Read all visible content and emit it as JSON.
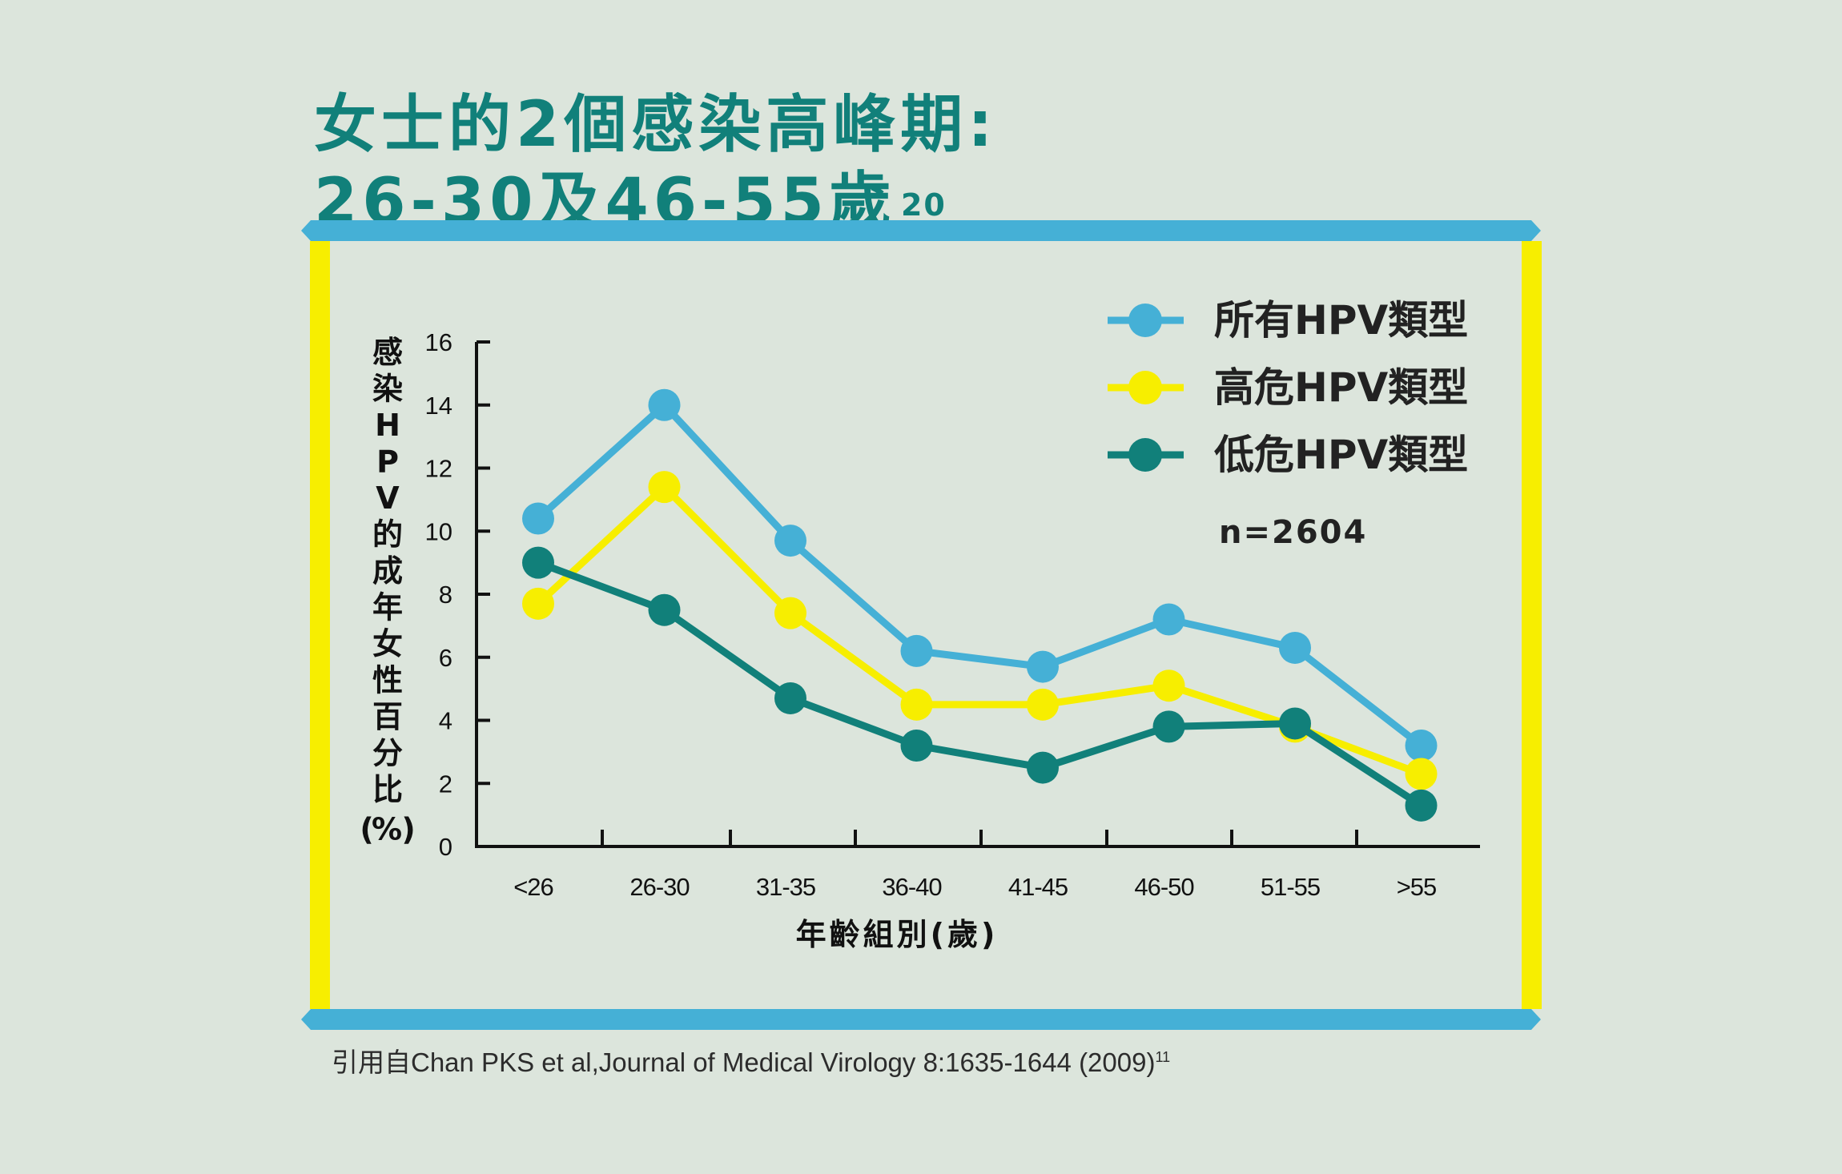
{
  "title": {
    "line1": "女士的2個感染高峰期:",
    "line2": "26-30及46-55歲",
    "superscript": "20"
  },
  "citation": {
    "text": "引用自Chan PKS et al,Journal of Medical Virology 8:1635-1644 (2009)",
    "superscript": "11"
  },
  "colors": {
    "frame_blue": "#45b0d6",
    "frame_yellow": "#f7ee00",
    "title_teal": "#11807a"
  },
  "chart_data": {
    "type": "line",
    "ylabel": "感染HPV的成年女性百分比(%)",
    "xlabel": "年齡組別(歲)",
    "categories": [
      "<26",
      "26-30",
      "31-35",
      "36-40",
      "41-45",
      "46-50",
      "51-55",
      ">55"
    ],
    "ylim": [
      0,
      16
    ],
    "yticks": [
      "0",
      "2",
      "4",
      "6",
      "8",
      "10",
      "12",
      "14",
      "16"
    ],
    "annotation": "n=2604",
    "legend_position": "top-right",
    "grid": false,
    "series": [
      {
        "name": "所有HPV類型",
        "color": "#45b0d6",
        "values": [
          10.4,
          14.0,
          9.7,
          6.2,
          5.7,
          7.2,
          6.3,
          3.2
        ]
      },
      {
        "name": "高危HPV類型",
        "color": "#f7ee00",
        "values": [
          7.7,
          11.4,
          7.4,
          4.5,
          4.5,
          5.1,
          3.8,
          2.3
        ]
      },
      {
        "name": "低危HPV類型",
        "color": "#11807a",
        "values": [
          9.0,
          7.5,
          4.7,
          3.2,
          2.5,
          3.8,
          3.9,
          1.3
        ]
      }
    ]
  }
}
